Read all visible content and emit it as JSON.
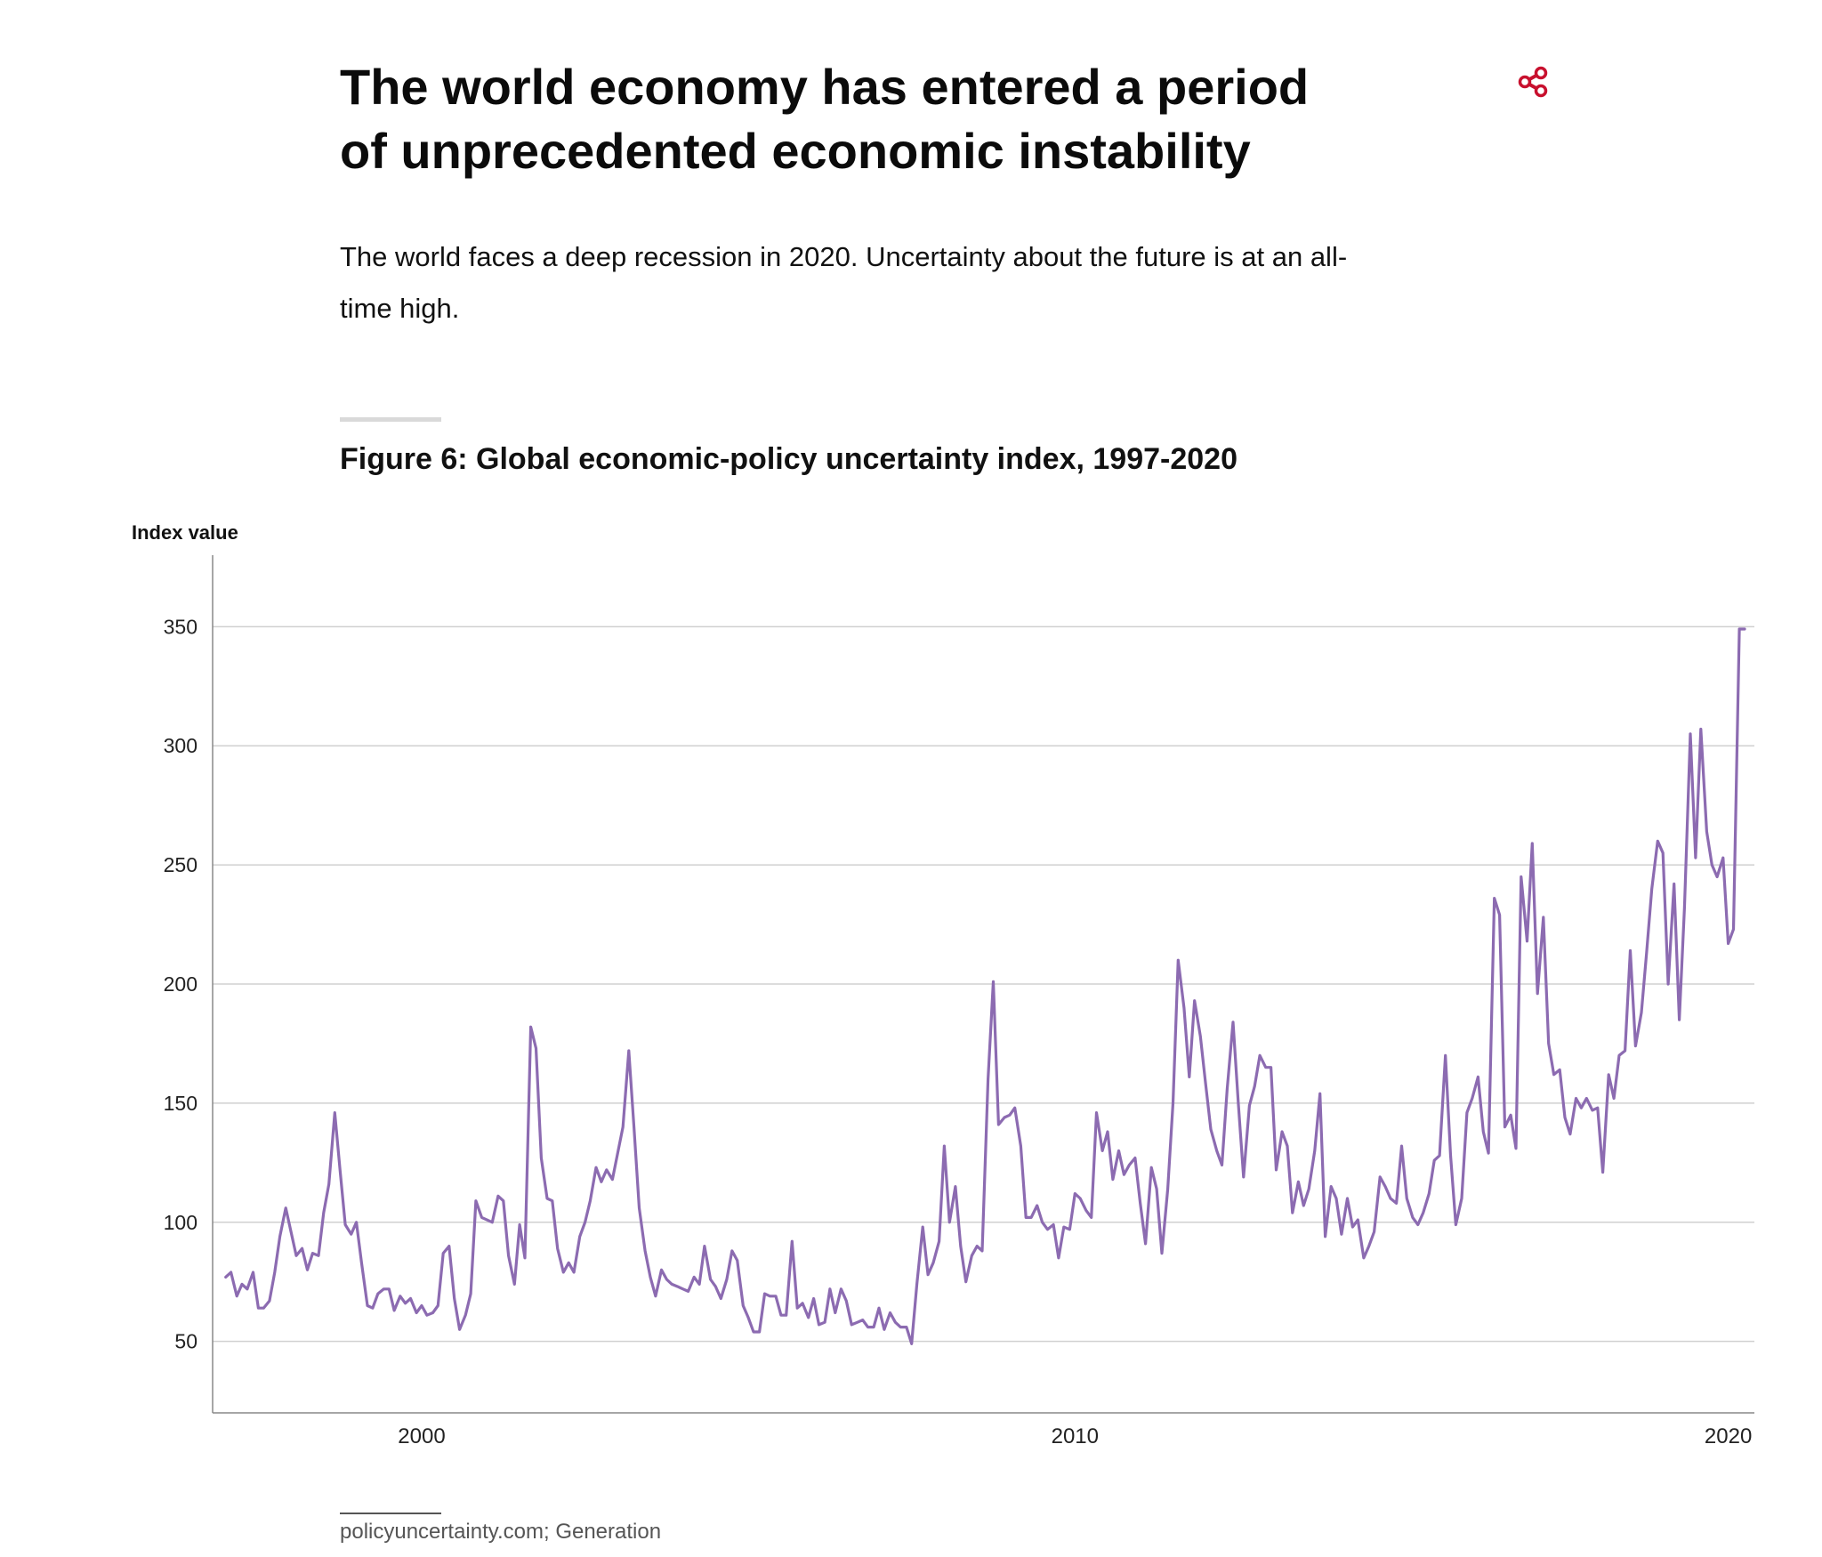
{
  "header": {
    "title": "The world economy has entered a period of unprecedented economic instability",
    "share_icon": "share-icon",
    "share_color": "#c8102e"
  },
  "lead": "The world faces a deep recession in 2020. Uncertainty about the future is at an all-time high.",
  "figure": {
    "title": "Figure 6: Global economic-policy uncertainty index, 1997-2020",
    "source": "policyuncertainty.com; Generation"
  },
  "chart_data": {
    "type": "line",
    "xlabel": "",
    "ylabel": "Index value",
    "ylim": [
      20,
      380
    ],
    "xlim": [
      1996.8,
      2020.4
    ],
    "yticks": [
      50,
      100,
      150,
      200,
      250,
      300,
      350
    ],
    "xticks": [
      2000,
      2010,
      2020
    ],
    "grid": true,
    "line_color": "#8c6bb1",
    "grid_color": "#d0d0d0",
    "series": [
      {
        "name": "",
        "x": [
          1997.0,
          1997.08,
          1997.17,
          1997.25,
          1997.33,
          1997.42,
          1997.5,
          1997.58,
          1997.67,
          1997.75,
          1997.83,
          1997.92,
          1998.0,
          1998.08,
          1998.17,
          1998.25,
          1998.33,
          1998.42,
          1998.5,
          1998.58,
          1998.67,
          1998.75,
          1998.83,
          1998.92,
          1999.0,
          1999.08,
          1999.17,
          1999.25,
          1999.33,
          1999.42,
          1999.5,
          1999.58,
          1999.67,
          1999.75,
          1999.83,
          1999.92,
          2000.0,
          2000.08,
          2000.17,
          2000.25,
          2000.33,
          2000.42,
          2000.5,
          2000.58,
          2000.67,
          2000.75,
          2000.83,
          2000.92,
          2001.0,
          2001.08,
          2001.17,
          2001.25,
          2001.33,
          2001.42,
          2001.5,
          2001.58,
          2001.67,
          2001.75,
          2001.83,
          2001.92,
          2002.0,
          2002.08,
          2002.17,
          2002.25,
          2002.33,
          2002.42,
          2002.5,
          2002.58,
          2002.67,
          2002.75,
          2002.83,
          2002.92,
          2003.0,
          2003.08,
          2003.17,
          2003.25,
          2003.33,
          2003.42,
          2003.5,
          2003.58,
          2003.67,
          2003.75,
          2003.83,
          2003.92,
          2004.0,
          2004.08,
          2004.17,
          2004.25,
          2004.33,
          2004.42,
          2004.5,
          2004.58,
          2004.67,
          2004.75,
          2004.83,
          2004.92,
          2005.0,
          2005.08,
          2005.17,
          2005.25,
          2005.33,
          2005.42,
          2005.5,
          2005.58,
          2005.67,
          2005.75,
          2005.83,
          2005.92,
          2006.0,
          2006.08,
          2006.17,
          2006.25,
          2006.33,
          2006.42,
          2006.5,
          2006.58,
          2006.67,
          2006.75,
          2006.83,
          2006.92,
          2007.0,
          2007.08,
          2007.17,
          2007.25,
          2007.33,
          2007.42,
          2007.5,
          2007.58,
          2007.67,
          2007.75,
          2007.83,
          2007.92,
          2008.0,
          2008.08,
          2008.17,
          2008.25,
          2008.33,
          2008.42,
          2008.5,
          2008.58,
          2008.67,
          2008.75,
          2008.83,
          2008.92,
          2009.0,
          2009.08,
          2009.17,
          2009.25,
          2009.33,
          2009.42,
          2009.5,
          2009.58,
          2009.67,
          2009.75,
          2009.83,
          2009.92,
          2010.0,
          2010.08,
          2010.17,
          2010.25,
          2010.33,
          2010.42,
          2010.5,
          2010.58,
          2010.67,
          2010.75,
          2010.83,
          2010.92,
          2011.0,
          2011.08,
          2011.17,
          2011.25,
          2011.33,
          2011.42,
          2011.5,
          2011.58,
          2011.67,
          2011.75,
          2011.83,
          2011.92,
          2012.0,
          2012.08,
          2012.17,
          2012.25,
          2012.33,
          2012.42,
          2012.5,
          2012.58,
          2012.67,
          2012.75,
          2012.83,
          2012.92,
          2013.0,
          2013.08,
          2013.17,
          2013.25,
          2013.33,
          2013.42,
          2013.5,
          2013.58,
          2013.67,
          2013.75,
          2013.83,
          2013.92,
          2014.0,
          2014.08,
          2014.17,
          2014.25,
          2014.33,
          2014.42,
          2014.5,
          2014.58,
          2014.67,
          2014.75,
          2014.83,
          2014.92,
          2015.0,
          2015.08,
          2015.17,
          2015.25,
          2015.33,
          2015.42,
          2015.5,
          2015.58,
          2015.67,
          2015.75,
          2015.83,
          2015.92,
          2016.0,
          2016.08,
          2016.17,
          2016.25,
          2016.33,
          2016.42,
          2016.5,
          2016.58,
          2016.67,
          2016.75,
          2016.83,
          2016.92,
          2017.0,
          2017.08,
          2017.17,
          2017.25,
          2017.33,
          2017.42,
          2017.5,
          2017.58,
          2017.67,
          2017.75,
          2017.83,
          2017.92,
          2018.0,
          2018.08,
          2018.17,
          2018.25,
          2018.33,
          2018.42,
          2018.5,
          2018.58,
          2018.67,
          2018.75,
          2018.83,
          2018.92,
          2019.0,
          2019.08,
          2019.17,
          2019.25,
          2019.33,
          2019.42,
          2019.5,
          2019.58,
          2019.67,
          2019.75,
          2019.83,
          2019.92,
          2020.0,
          2020.08,
          2020.17,
          2020.25
        ],
        "y": [
          77,
          79,
          69,
          74,
          72,
          79,
          64,
          64,
          67,
          79,
          94,
          106,
          96,
          86,
          89,
          80,
          87,
          86,
          104,
          116,
          146,
          122,
          99,
          95,
          100,
          83,
          65,
          64,
          70,
          72,
          72,
          63,
          69,
          66,
          68,
          62,
          65,
          61,
          62,
          65,
          87,
          90,
          68,
          55,
          61,
          70,
          109,
          102,
          101,
          100,
          111,
          109,
          86,
          74,
          99,
          85,
          182,
          173,
          127,
          110,
          109,
          89,
          79,
          83,
          79,
          94,
          100,
          109,
          123,
          117,
          122,
          118,
          129,
          140,
          172,
          140,
          106,
          88,
          77,
          69,
          80,
          76,
          74,
          73,
          72,
          71,
          77,
          74,
          90,
          76,
          73,
          68,
          76,
          88,
          84,
          65,
          60,
          54,
          54,
          70,
          69,
          69,
          61,
          61,
          92,
          64,
          66,
          60,
          68,
          57,
          58,
          72,
          62,
          72,
          67,
          57,
          58,
          59,
          56,
          56,
          64,
          55,
          62,
          58,
          56,
          56,
          49,
          74,
          98,
          78,
          83,
          92,
          132,
          100,
          115,
          90,
          75,
          86,
          90,
          88,
          160,
          201,
          141,
          144,
          145,
          148,
          132,
          102,
          102,
          107,
          100,
          97,
          99,
          85,
          98,
          97,
          112,
          110,
          105,
          102,
          146,
          130,
          138,
          118,
          130,
          120,
          124,
          127,
          108,
          91,
          123,
          114,
          87,
          114,
          150,
          210,
          190,
          161,
          193,
          178,
          158,
          139,
          130,
          124,
          156,
          184,
          150,
          119,
          149,
          157,
          170,
          165,
          165,
          122,
          138,
          132,
          104,
          117,
          107,
          114,
          130,
          154,
          94,
          115,
          110,
          95,
          110,
          98,
          101,
          85,
          90,
          96,
          119,
          115,
          110,
          108,
          132,
          110,
          102,
          99,
          104,
          112,
          126,
          128,
          170,
          128,
          99,
          110,
          146,
          152,
          161,
          138,
          129,
          236,
          229,
          140,
          145,
          131,
          245,
          218,
          259,
          196,
          228,
          175,
          162,
          164,
          144,
          137,
          152,
          148,
          152,
          147,
          148,
          121,
          162,
          152,
          170,
          172,
          214,
          174,
          188,
          213,
          240,
          260,
          255,
          200,
          242,
          185,
          232,
          305,
          253,
          307,
          264,
          250,
          245,
          253,
          217,
          223,
          349,
          349
        ]
      }
    ]
  }
}
